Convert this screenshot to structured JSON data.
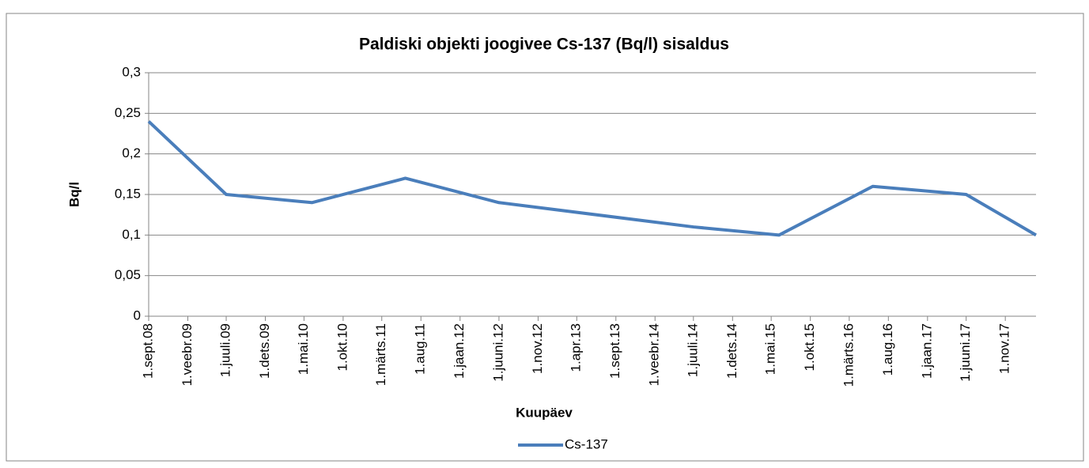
{
  "chart_data": {
    "type": "line",
    "title": "Paldiski objekti joogivee Cs-137 (Bq/l) sisaldus",
    "x_label": "Kuupäev",
    "y_label": "Bq/l",
    "x": [
      "2008-09-01",
      "2009-07-01",
      "2010-06-01",
      "2011-06-01",
      "2012-06-01",
      "2014-07-01",
      "2015-06-01",
      "2016-06-01",
      "2017-06-01",
      "2018-03-01"
    ],
    "series": [
      {
        "name": "Cs-137",
        "color": "#4a7ebb",
        "values": [
          0.24,
          0.15,
          0.14,
          0.17,
          0.14,
          0.11,
          0.1,
          0.16,
          0.15,
          0.1
        ]
      }
    ],
    "xlim": [
      "2008-09-01",
      "2018-03-01"
    ],
    "xticks": [
      {
        "value": "2008-09-01",
        "label": "1.sept.08"
      },
      {
        "value": "2009-02-01",
        "label": "1.veebr.09"
      },
      {
        "value": "2009-07-01",
        "label": "1.juuli.09"
      },
      {
        "value": "2009-12-01",
        "label": "1.dets.09"
      },
      {
        "value": "2010-05-01",
        "label": "1.mai.10"
      },
      {
        "value": "2010-10-01",
        "label": "1.okt.10"
      },
      {
        "value": "2011-03-01",
        "label": "1.märts.11"
      },
      {
        "value": "2011-08-01",
        "label": "1.aug.11"
      },
      {
        "value": "2012-01-01",
        "label": "1.jaan.12"
      },
      {
        "value": "2012-06-01",
        "label": "1.juuni.12"
      },
      {
        "value": "2012-11-01",
        "label": "1.nov.12"
      },
      {
        "value": "2013-04-01",
        "label": "1.apr.13"
      },
      {
        "value": "2013-09-01",
        "label": "1.sept.13"
      },
      {
        "value": "2014-02-01",
        "label": "1.veebr.14"
      },
      {
        "value": "2014-07-01",
        "label": "1.juuli.14"
      },
      {
        "value": "2014-12-01",
        "label": "1.dets.14"
      },
      {
        "value": "2015-05-01",
        "label": "1.mai.15"
      },
      {
        "value": "2015-10-01",
        "label": "1.okt.15"
      },
      {
        "value": "2016-03-01",
        "label": "1.märts.16"
      },
      {
        "value": "2016-08-01",
        "label": "1.aug.16"
      },
      {
        "value": "2017-01-01",
        "label": "1.jaan.17"
      },
      {
        "value": "2017-06-01",
        "label": "1.juuni.17"
      },
      {
        "value": "2017-11-01",
        "label": "1.nov.17"
      }
    ],
    "ylim": [
      0,
      0.3
    ],
    "yticks": [
      0,
      {
        "value": 0.05,
        "label": "0,05"
      },
      {
        "value": 0.1,
        "label": "0,1"
      },
      {
        "value": 0.15,
        "label": "0,15"
      },
      {
        "value": 0.2,
        "label": "0,2"
      },
      {
        "value": 0.25,
        "label": "0,25"
      },
      {
        "value": 0.3,
        "label": "0,3"
      }
    ],
    "grid": true,
    "legend": "bottom"
  }
}
